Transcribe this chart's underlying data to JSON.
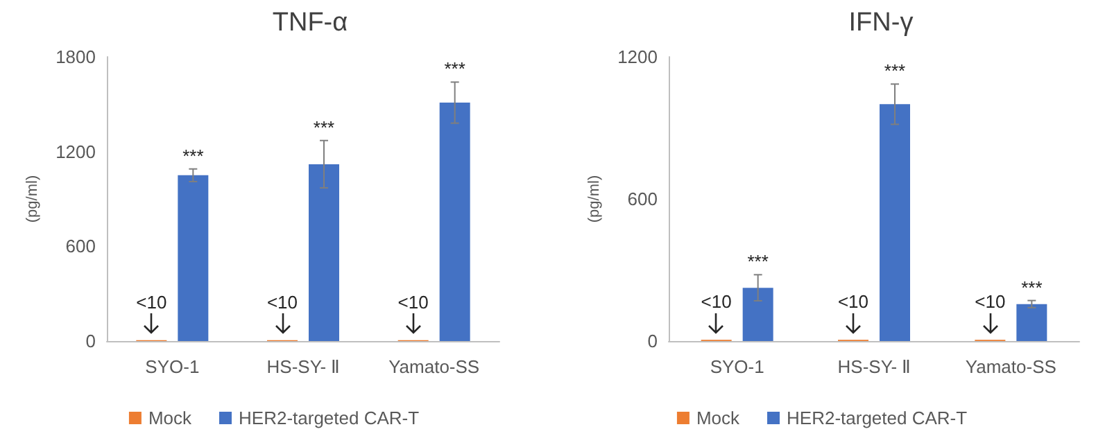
{
  "chart_data": [
    {
      "type": "bar",
      "title": "TNF-α",
      "ylabel": "(pg/ml)",
      "categories": [
        "SYO-1",
        "HS-SY- Ⅱ",
        "Yamato-SS"
      ],
      "series": [
        {
          "name": "Mock",
          "color": "#ed7d31",
          "values": [
            5,
            5,
            5
          ],
          "value_labels": [
            "<10",
            "<10",
            "<10"
          ]
        },
        {
          "name": "HER2-targeted CAR-T",
          "color": "#4472c4",
          "values": [
            1050,
            1120,
            1510
          ],
          "errors": [
            40,
            150,
            130
          ],
          "value_labels": [
            "***",
            "***",
            "***"
          ]
        }
      ],
      "ylim": [
        0,
        1800
      ],
      "yticks": [
        0,
        600,
        1200,
        1800
      ],
      "grid": false,
      "legend": "bottom"
    },
    {
      "type": "bar",
      "title": "IFN-γ",
      "ylabel": "(pg/ml)",
      "categories": [
        "SYO-1",
        "HS-SY- Ⅱ",
        "Yamato-SS"
      ],
      "series": [
        {
          "name": "Mock",
          "color": "#ed7d31",
          "values": [
            5,
            5,
            5
          ],
          "value_labels": [
            "<10",
            "<10",
            "<10"
          ]
        },
        {
          "name": "HER2-targeted CAR-T",
          "color": "#4472c4",
          "values": [
            225,
            1000,
            156
          ],
          "errors": [
            55,
            85,
            15
          ],
          "value_labels": [
            "***",
            "***",
            "***"
          ]
        }
      ],
      "ylim": [
        0,
        1200
      ],
      "yticks": [
        0,
        600,
        1200
      ],
      "grid": false,
      "legend": "bottom"
    }
  ]
}
